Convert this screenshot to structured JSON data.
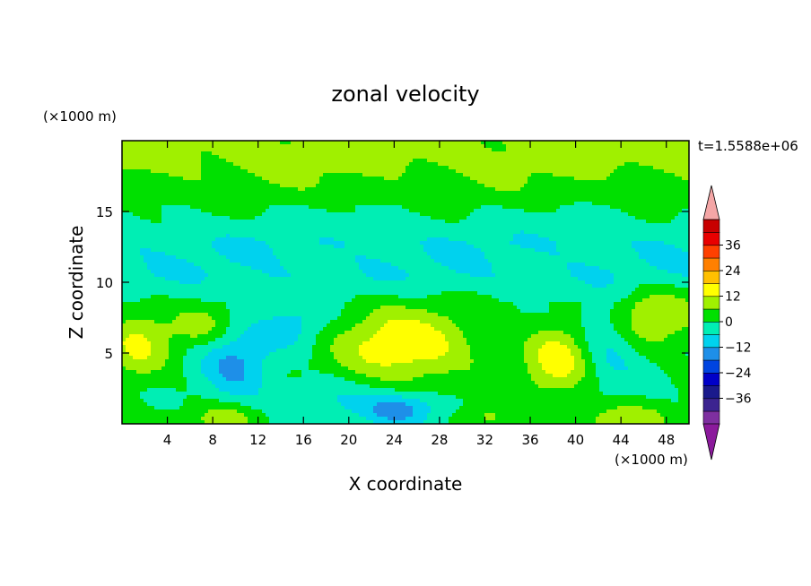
{
  "chart_data": {
    "type": "heatmap",
    "title": "zonal velocity",
    "xlabel": "X coordinate",
    "ylabel": "Z coordinate",
    "x_unit": "(×1000 m)",
    "y_unit": "(×1000 m)",
    "time_label": "t=1.5588e+06",
    "xlim": [
      0,
      50
    ],
    "ylim": [
      0,
      20
    ],
    "x_ticks": [
      4,
      8,
      12,
      16,
      20,
      24,
      28,
      32,
      36,
      40,
      44,
      48
    ],
    "y_ticks": [
      5,
      10,
      15
    ],
    "colorbar": {
      "ticks": [
        36,
        24,
        12,
        0,
        -12,
        -24,
        -36
      ],
      "levels": [
        -42,
        -36,
        -30,
        -24,
        -18,
        -12,
        -6,
        0,
        6,
        12,
        18,
        24,
        30,
        36,
        42
      ],
      "colors": [
        "#7e2fa0",
        "#3c2490",
        "#1a1a8c",
        "#0000c8",
        "#0044e0",
        "#1e8fe8",
        "#00d2ee",
        "#00eeb4",
        "#00e000",
        "#a0f000",
        "#ffff00",
        "#ffc000",
        "#ff8000",
        "#ff4000",
        "#e80000",
        "#c80000"
      ],
      "extend_low_color": "#8b1a9c",
      "extend_high_color": "#f4a6a6"
    }
  }
}
